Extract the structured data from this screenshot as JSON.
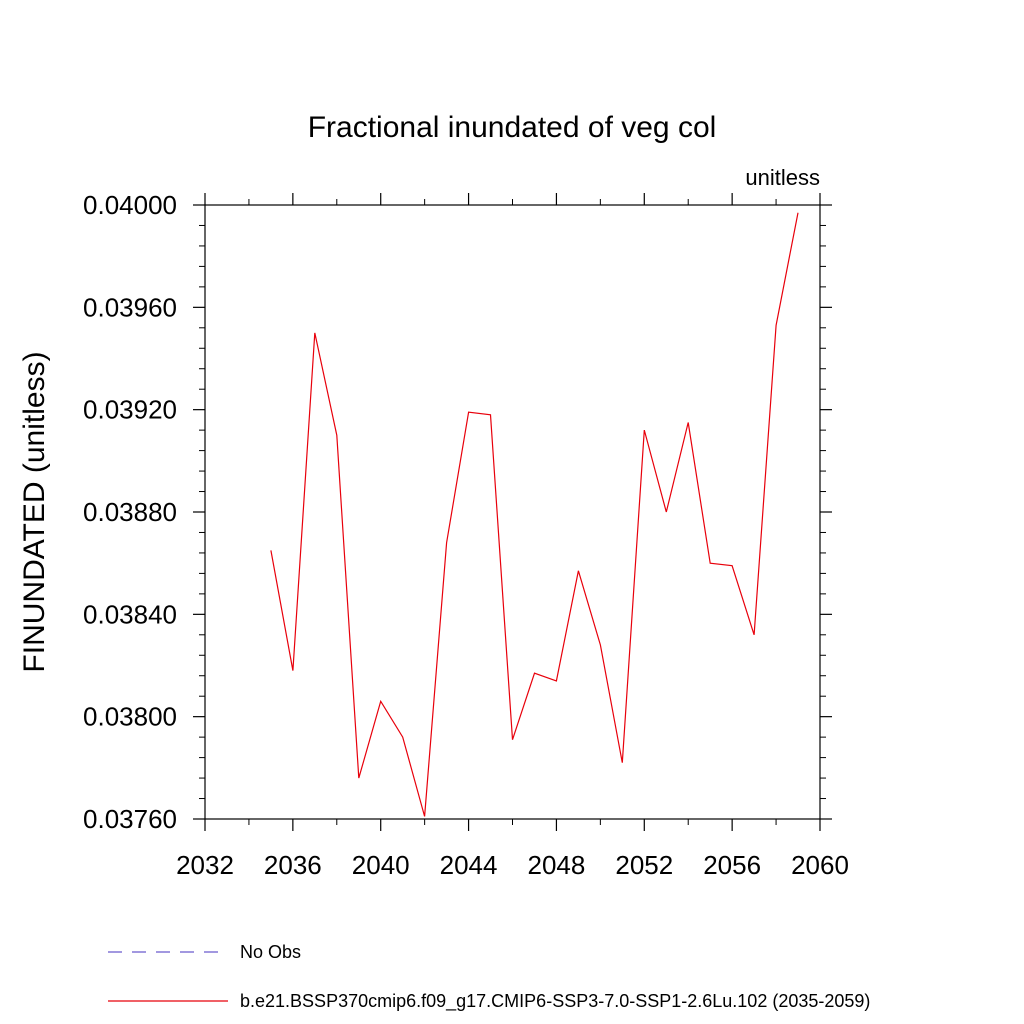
{
  "chart_data": {
    "type": "line",
    "title": "Fractional inundated of veg col",
    "units_label": "unitless",
    "xlabel": "",
    "ylabel": "FINUNDATED  (unitless)",
    "xlim": [
      2032,
      2060
    ],
    "ylim": [
      0.0376,
      0.04
    ],
    "x_ticks": [
      2032,
      2036,
      2040,
      2044,
      2048,
      2052,
      2056,
      2060
    ],
    "y_ticks": [
      0.0376,
      0.038,
      0.0384,
      0.0388,
      0.0392,
      0.0396,
      0.04
    ],
    "x_tick_labels": [
      "2032",
      "2036",
      "2040",
      "2044",
      "2048",
      "2052",
      "2056",
      "2060"
    ],
    "y_tick_labels": [
      "0.03760",
      "0.03800",
      "0.03840",
      "0.03880",
      "0.03920",
      "0.03960",
      "0.04000"
    ],
    "grid": false,
    "legend_position": "bottom",
    "series": [
      {
        "name": "No Obs",
        "color": "#6a5acd",
        "style": "dashed",
        "x": [],
        "y": []
      },
      {
        "name": "b.e21.BSSP370cmip6.f09_g17.CMIP6-SSP3-7.0-SSP1-2.6Lu.102 (2035-2059)",
        "color": "#e8000b",
        "style": "solid",
        "x": [
          2035,
          2036,
          2037,
          2038,
          2039,
          2040,
          2041,
          2042,
          2043,
          2044,
          2045,
          2046,
          2047,
          2048,
          2049,
          2050,
          2051,
          2052,
          2053,
          2054,
          2055,
          2056,
          2057,
          2058,
          2059
        ],
        "y": [
          0.03865,
          0.03818,
          0.0395,
          0.0391,
          0.03776,
          0.03806,
          0.03792,
          0.03761,
          0.03868,
          0.03919,
          0.03918,
          0.03791,
          0.03817,
          0.03814,
          0.03857,
          0.03828,
          0.03782,
          0.03912,
          0.0388,
          0.03915,
          0.0386,
          0.03859,
          0.03832,
          0.03953,
          0.03997
        ]
      }
    ]
  }
}
